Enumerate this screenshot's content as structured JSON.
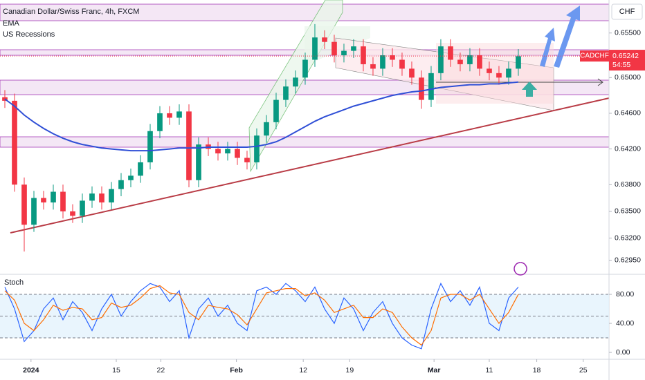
{
  "header": {
    "title": "Canadian Dollar/Swiss Franc, 4h, FXCM",
    "indicators": [
      "EMA",
      "US Recessions"
    ],
    "currency": "CHF"
  },
  "chart_data": [
    {
      "type": "candlestick",
      "name": "CADCHF",
      "x": [
        0,
        1,
        2,
        3,
        4,
        5,
        6,
        7,
        8,
        9,
        10,
        11,
        12,
        13,
        14,
        15,
        16,
        17,
        18,
        19,
        20,
        21,
        22,
        23,
        24,
        25,
        26,
        27,
        28,
        29,
        30,
        31,
        32,
        33,
        34,
        35,
        36,
        37,
        38,
        39,
        40,
        41,
        42,
        43,
        44,
        45,
        46,
        47,
        48,
        49,
        50,
        51,
        52,
        53
      ],
      "open": [
        0.6478,
        0.6474,
        0.638,
        0.6335,
        0.6365,
        0.636,
        0.6372,
        0.635,
        0.6345,
        0.6362,
        0.637,
        0.636,
        0.6375,
        0.6385,
        0.639,
        0.6405,
        0.644,
        0.646,
        0.6455,
        0.6462,
        0.6385,
        0.6425,
        0.642,
        0.6415,
        0.642,
        0.641,
        0.6405,
        0.6435,
        0.645,
        0.6475,
        0.649,
        0.65,
        0.652,
        0.6545,
        0.654,
        0.6525,
        0.653,
        0.6535,
        0.6515,
        0.651,
        0.6525,
        0.652,
        0.651,
        0.65,
        0.6475,
        0.6505,
        0.6535,
        0.652,
        0.6515,
        0.6525,
        0.651,
        0.6505,
        0.65,
        0.651
      ],
      "high": [
        0.6486,
        0.6482,
        0.6388,
        0.6373,
        0.6373,
        0.638,
        0.638,
        0.6358,
        0.637,
        0.6378,
        0.6378,
        0.6383,
        0.6393,
        0.6398,
        0.6413,
        0.6448,
        0.6468,
        0.6468,
        0.647,
        0.647,
        0.6433,
        0.6433,
        0.6428,
        0.6428,
        0.6428,
        0.6418,
        0.6443,
        0.6458,
        0.6483,
        0.6498,
        0.6508,
        0.6528,
        0.656,
        0.6553,
        0.6548,
        0.6538,
        0.6543,
        0.6543,
        0.6523,
        0.6533,
        0.6533,
        0.6528,
        0.6518,
        0.6508,
        0.6513,
        0.6543,
        0.6543,
        0.6528,
        0.6533,
        0.6533,
        0.6518,
        0.6513,
        0.6518,
        0.6532
      ],
      "low": [
        0.6466,
        0.6372,
        0.6305,
        0.6327,
        0.6352,
        0.6352,
        0.6342,
        0.6337,
        0.6337,
        0.6354,
        0.6352,
        0.6352,
        0.6367,
        0.6377,
        0.6382,
        0.6397,
        0.6432,
        0.6447,
        0.6447,
        0.6377,
        0.6377,
        0.6412,
        0.6407,
        0.6407,
        0.6402,
        0.6397,
        0.6397,
        0.6427,
        0.6442,
        0.6467,
        0.6482,
        0.6492,
        0.6512,
        0.6532,
        0.6517,
        0.6517,
        0.6522,
        0.6507,
        0.6502,
        0.6502,
        0.6512,
        0.6502,
        0.6492,
        0.6465,
        0.6467,
        0.6497,
        0.6512,
        0.6507,
        0.6507,
        0.6502,
        0.6497,
        0.6492,
        0.6492,
        0.6502
      ],
      "close": [
        0.6474,
        0.638,
        0.6335,
        0.6365,
        0.636,
        0.6372,
        0.635,
        0.6345,
        0.6362,
        0.637,
        0.636,
        0.6375,
        0.6385,
        0.639,
        0.6405,
        0.644,
        0.646,
        0.6455,
        0.6462,
        0.6385,
        0.6425,
        0.642,
        0.6415,
        0.642,
        0.641,
        0.6405,
        0.6435,
        0.645,
        0.6475,
        0.649,
        0.65,
        0.652,
        0.6545,
        0.654,
        0.6525,
        0.653,
        0.6535,
        0.6515,
        0.651,
        0.6525,
        0.652,
        0.651,
        0.65,
        0.6475,
        0.6505,
        0.6535,
        0.652,
        0.6515,
        0.6525,
        0.651,
        0.6505,
        0.65,
        0.651,
        0.6524
      ],
      "up_color": "#089981",
      "down_color": "#f23645",
      "ema": {
        "name": "EMA",
        "color": "#2f4fd6",
        "values": [
          0.6476,
          0.6468,
          0.6458,
          0.645,
          0.6443,
          0.6437,
          0.6432,
          0.6428,
          0.6425,
          0.6423,
          0.6421,
          0.642,
          0.6419,
          0.6418,
          0.6418,
          0.6418,
          0.6419,
          0.642,
          0.6421,
          0.6421,
          0.6421,
          0.6422,
          0.6422,
          0.6422,
          0.6422,
          0.6422,
          0.6423,
          0.6425,
          0.6428,
          0.6433,
          0.6439,
          0.6445,
          0.6451,
          0.6456,
          0.646,
          0.6464,
          0.6468,
          0.6471,
          0.6474,
          0.6477,
          0.648,
          0.6482,
          0.6484,
          0.6485,
          0.6487,
          0.6489,
          0.649,
          0.6491,
          0.6492,
          0.6492,
          0.6493,
          0.6493,
          0.6494,
          0.6495
        ]
      },
      "last_price": {
        "symbol": "CADCHF",
        "value": 0.65242,
        "label": "0.65242",
        "countdown": "54:55"
      },
      "xlim": [
        -0.5,
        62.36
      ],
      "xticks": [
        {
          "value": 2.7,
          "label": "2024"
        },
        {
          "value": 11.5,
          "label": "15"
        },
        {
          "value": 16.1,
          "label": "22"
        },
        {
          "value": 23.9,
          "label": "Feb"
        },
        {
          "value": 30.8,
          "label": "12"
        },
        {
          "value": 35.6,
          "label": "19"
        },
        {
          "value": 44.3,
          "label": "Mar"
        },
        {
          "value": 50,
          "label": "11"
        },
        {
          "value": 54.9,
          "label": "18"
        },
        {
          "value": 59.7,
          "label": "25"
        }
      ],
      "ylim": [
        0.6281,
        0.6587
      ],
      "yticks": [
        {
          "value": 0.6295,
          "label": "0.62950"
        },
        {
          "value": 0.632,
          "label": "0.63200"
        },
        {
          "value": 0.635,
          "label": "0.63500"
        },
        {
          "value": 0.638,
          "label": "0.63800"
        },
        {
          "value": 0.642,
          "label": "0.64200"
        },
        {
          "value": 0.646,
          "label": "0.64600"
        },
        {
          "value": 0.65,
          "label": "0.65000"
        },
        {
          "value": 0.655,
          "label": "0.65500"
        }
      ]
    },
    {
      "type": "line",
      "title": "Stoch",
      "x": [
        0,
        1,
        2,
        3,
        4,
        5,
        6,
        7,
        8,
        9,
        10,
        11,
        12,
        13,
        14,
        15,
        16,
        17,
        18,
        19,
        20,
        21,
        22,
        23,
        24,
        25,
        26,
        27,
        28,
        29,
        30,
        31,
        32,
        33,
        34,
        35,
        36,
        37,
        38,
        39,
        40,
        41,
        42,
        43,
        44,
        45,
        46,
        47,
        48,
        49,
        50,
        51,
        52,
        53
      ],
      "series": [
        {
          "color": "#2962ff",
          "values": [
            90,
            60,
            15,
            30,
            60,
            75,
            45,
            70,
            55,
            30,
            60,
            80,
            50,
            70,
            85,
            95,
            90,
            70,
            85,
            20,
            60,
            75,
            50,
            65,
            40,
            30,
            85,
            90,
            80,
            95,
            85,
            70,
            90,
            60,
            40,
            75,
            60,
            30,
            55,
            70,
            40,
            20,
            10,
            5,
            60,
            95,
            70,
            85,
            65,
            90,
            40,
            30,
            75,
            90
          ]
        },
        {
          "color": "#ff6d00",
          "values": [
            85,
            72,
            40,
            30,
            45,
            65,
            58,
            62,
            60,
            45,
            48,
            68,
            62,
            65,
            75,
            88,
            92,
            82,
            80,
            55,
            45,
            65,
            62,
            60,
            52,
            38,
            60,
            82,
            85,
            88,
            88,
            78,
            82,
            72,
            55,
            60,
            65,
            48,
            48,
            60,
            55,
            35,
            20,
            10,
            30,
            75,
            80,
            80,
            72,
            80,
            60,
            40,
            55,
            80
          ]
        }
      ],
      "band": [
        20,
        80
      ],
      "midline": 50,
      "xlim": [
        -0.5,
        62.36
      ],
      "ylim": [
        -9.5,
        104.8
      ],
      "yticks": [
        {
          "value": 0,
          "label": "0.00"
        },
        {
          "value": 40,
          "label": "40.00"
        },
        {
          "value": 80,
          "label": "80.00"
        }
      ]
    }
  ]
}
